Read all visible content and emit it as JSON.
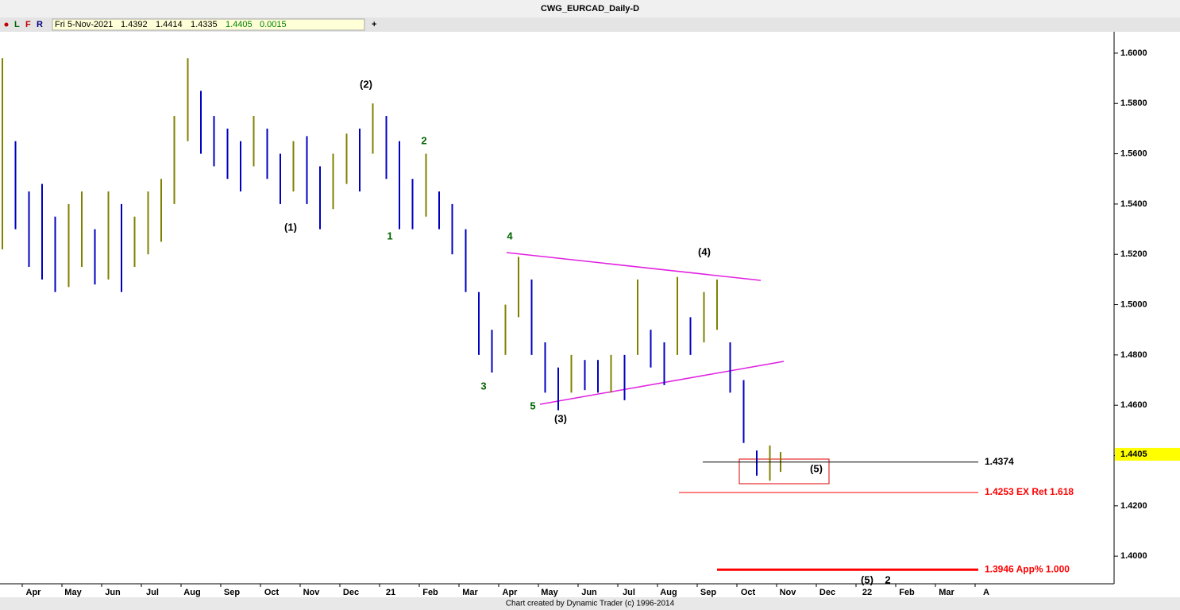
{
  "window_title": "CWG_EURCAD_Daily-D",
  "toolbar": {
    "buttons": [
      "L",
      "F",
      "R",
      "+"
    ],
    "date": "Fri 5-Nov-2021",
    "open": "1.4392",
    "high": "1.4414",
    "low": "1.4335",
    "close": "1.4405",
    "change": "0.0015"
  },
  "footer": "Chart created by Dynamic Trader  (c) 1996-2014",
  "chart_data": {
    "type": "range_bar",
    "up_color": "#808000",
    "down_color": "#0000c0",
    "x": [
      -0.5,
      -0.17,
      0.17,
      0.5,
      0.83,
      1.17,
      1.5,
      1.83,
      2.17,
      2.5,
      2.83,
      3.17,
      3.5,
      3.83,
      4.17,
      4.5,
      4.83,
      5.17,
      5.5,
      5.83,
      6.17,
      6.5,
      6.83,
      7.17,
      7.5,
      7.83,
      8.17,
      8.5,
      8.83,
      9.17,
      9.5,
      9.83,
      10.17,
      10.5,
      10.83,
      11.17,
      11.5,
      11.83,
      12.17,
      12.5,
      12.83,
      13.17,
      13.5,
      13.83,
      14.17,
      14.5,
      14.83,
      15.17,
      15.5,
      15.83,
      16.17,
      16.5,
      16.83,
      17.17,
      17.5,
      17.83,
      18.17,
      18.5,
      18.83,
      19.1
    ],
    "high": [
      1.598,
      1.565,
      1.545,
      1.548,
      1.535,
      1.54,
      1.545,
      1.53,
      1.545,
      1.54,
      1.535,
      1.545,
      1.55,
      1.575,
      1.598,
      1.585,
      1.575,
      1.57,
      1.565,
      1.575,
      1.57,
      1.56,
      1.565,
      1.567,
      1.555,
      1.56,
      1.568,
      1.57,
      1.58,
      1.575,
      1.565,
      1.55,
      1.56,
      1.545,
      1.54,
      1.53,
      1.505,
      1.49,
      1.5,
      1.519,
      1.51,
      1.485,
      1.475,
      1.48,
      1.478,
      1.478,
      1.48,
      1.48,
      1.51,
      1.49,
      1.485,
      1.511,
      1.495,
      1.505,
      1.51,
      1.485,
      1.47,
      1.442,
      1.444,
      1.4414
    ],
    "low": [
      1.522,
      1.53,
      1.515,
      1.51,
      1.505,
      1.507,
      1.515,
      1.508,
      1.51,
      1.505,
      1.515,
      1.52,
      1.525,
      1.54,
      1.565,
      1.56,
      1.555,
      1.55,
      1.545,
      1.555,
      1.55,
      1.54,
      1.545,
      1.54,
      1.53,
      1.538,
      1.548,
      1.545,
      1.56,
      1.55,
      1.53,
      1.53,
      1.535,
      1.53,
      1.52,
      1.505,
      1.48,
      1.473,
      1.48,
      1.495,
      1.48,
      1.465,
      1.458,
      1.465,
      1.466,
      1.465,
      1.465,
      1.462,
      1.48,
      1.475,
      1.468,
      1.48,
      1.48,
      1.485,
      1.49,
      1.465,
      1.445,
      1.432,
      1.43,
      1.4335
    ],
    "xlim": [
      -0.56,
      27.5
    ],
    "xticks": [
      {
        "value": 0,
        "label": "Apr"
      },
      {
        "value": 1,
        "label": "May"
      },
      {
        "value": 2,
        "label": "Jun"
      },
      {
        "value": 3,
        "label": "Jul"
      },
      {
        "value": 4,
        "label": "Aug"
      },
      {
        "value": 5,
        "label": "Sep"
      },
      {
        "value": 6,
        "label": "Oct"
      },
      {
        "value": 7,
        "label": "Nov"
      },
      {
        "value": 8,
        "label": "Dec"
      },
      {
        "value": 9,
        "label": "21"
      },
      {
        "value": 10,
        "label": "Feb"
      },
      {
        "value": 11,
        "label": "Mar"
      },
      {
        "value": 12,
        "label": "Apr"
      },
      {
        "value": 13,
        "label": "May"
      },
      {
        "value": 14,
        "label": "Jun"
      },
      {
        "value": 15,
        "label": "Jul"
      },
      {
        "value": 16,
        "label": "Aug"
      },
      {
        "value": 17,
        "label": "Sep"
      },
      {
        "value": 18,
        "label": "Oct"
      },
      {
        "value": 19,
        "label": "Nov"
      },
      {
        "value": 20,
        "label": "Dec"
      },
      {
        "value": 21,
        "label": "22"
      },
      {
        "value": 22,
        "label": "Feb"
      },
      {
        "value": 23,
        "label": "Mar"
      },
      {
        "value": 24,
        "label": "A"
      }
    ],
    "ylim": [
      1.389,
      1.6085
    ],
    "yticks": [
      {
        "value": 1.4,
        "label": "1.4000"
      },
      {
        "value": 1.42,
        "label": "1.4200"
      },
      {
        "value": 1.44,
        "label": "1.4400"
      },
      {
        "value": 1.46,
        "label": "1.4600"
      },
      {
        "value": 1.48,
        "label": "1.4800"
      },
      {
        "value": 1.5,
        "label": "1.5000"
      },
      {
        "value": 1.52,
        "label": "1.5200"
      },
      {
        "value": 1.54,
        "label": "1.5400"
      },
      {
        "value": 1.56,
        "label": "1.5600"
      },
      {
        "value": 1.58,
        "label": "1.5800"
      },
      {
        "value": 1.6,
        "label": "1.6000"
      }
    ],
    "last_price": {
      "value": 1.4405,
      "label": "1.4405"
    },
    "levels": [
      {
        "value": 1.4374,
        "label": "1.4374",
        "color": "#000000"
      },
      {
        "value": 1.4253,
        "label": "1.4253 EX Ret 1.618",
        "color": "#ff0000"
      },
      {
        "value": 1.3946,
        "label": "1.3946 App% 1.000",
        "color": "#ff0000"
      }
    ],
    "wave_labels": [
      {
        "text": "(1)",
        "color": "#000000"
      },
      {
        "text": "(2)",
        "color": "#000000"
      },
      {
        "text": "1",
        "color": "#006400"
      },
      {
        "text": "2",
        "color": "#006400"
      },
      {
        "text": "3",
        "color": "#006400"
      },
      {
        "text": "4",
        "color": "#006400"
      },
      {
        "text": "5",
        "color": "#006400"
      },
      {
        "text": "(3)",
        "color": "#000000"
      },
      {
        "text": "(4)",
        "color": "#000000"
      },
      {
        "text": "(5)",
        "color": "#000000"
      },
      {
        "text": "(5)",
        "color": "#000000"
      },
      {
        "text": "2",
        "color": "#000000"
      }
    ]
  }
}
